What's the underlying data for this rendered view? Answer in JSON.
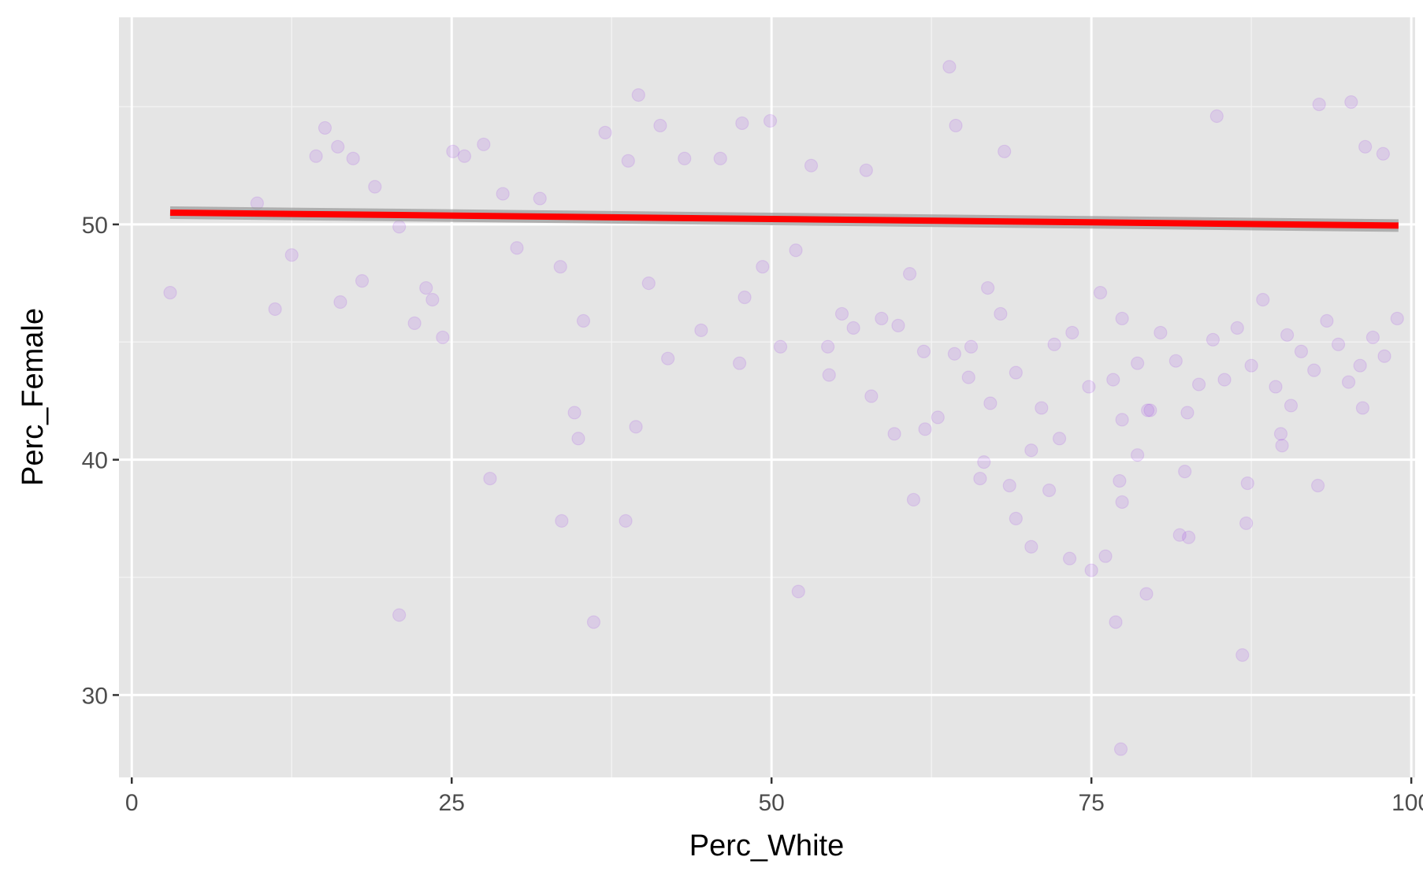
{
  "chart_data": {
    "type": "scatter",
    "title": "",
    "xlabel": "Perc_White",
    "ylabel": "Perc_Female",
    "xlim": [
      -1.0,
      100.3
    ],
    "ylim": [
      26.5,
      58.8
    ],
    "x_ticks": [
      0,
      25,
      50,
      75,
      100
    ],
    "x_tick_labels": [
      "0",
      "25",
      "50",
      "75",
      "100"
    ],
    "y_ticks": [
      30,
      40,
      50
    ],
    "y_tick_labels": [
      "30",
      "40",
      "50"
    ],
    "grid": true,
    "legend": "none",
    "point_color": "#8a1be8",
    "point_opacity": 0.12,
    "trend_line": {
      "method": "linear",
      "x": [
        3,
        99
      ],
      "y": [
        50.5,
        49.95
      ],
      "color": "#ff0000",
      "band_color": "#999999"
    },
    "points": [
      [
        3.0,
        47.1
      ],
      [
        12.5,
        48.7
      ],
      [
        11.2,
        46.4
      ],
      [
        16.3,
        46.7
      ],
      [
        18.0,
        47.6
      ],
      [
        20.9,
        33.4
      ],
      [
        24.3,
        45.2
      ],
      [
        28.0,
        39.2
      ],
      [
        34.6,
        42.0
      ],
      [
        34.9,
        40.9
      ],
      [
        33.6,
        37.4
      ],
      [
        36.1,
        33.1
      ],
      [
        38.6,
        37.4
      ],
      [
        39.4,
        41.4
      ],
      [
        39.6,
        55.5
      ],
      [
        47.5,
        44.1
      ],
      [
        52.1,
        34.4
      ],
      [
        54.5,
        43.6
      ],
      [
        57.8,
        42.7
      ],
      [
        59.6,
        41.1
      ],
      [
        61.1,
        38.3
      ],
      [
        62.0,
        41.3
      ],
      [
        64.3,
        44.5
      ],
      [
        65.4,
        43.5
      ],
      [
        66.3,
        39.2
      ],
      [
        66.6,
        39.9
      ],
      [
        67.1,
        42.4
      ],
      [
        68.2,
        53.1
      ],
      [
        68.6,
        38.9
      ],
      [
        69.1,
        37.5
      ],
      [
        70.3,
        36.3
      ],
      [
        71.7,
        38.7
      ],
      [
        72.5,
        40.9
      ],
      [
        73.3,
        35.8
      ],
      [
        75.0,
        35.3
      ],
      [
        76.1,
        35.9
      ],
      [
        77.4,
        38.2
      ],
      [
        77.2,
        39.1
      ],
      [
        77.4,
        41.7
      ],
      [
        78.6,
        40.2
      ],
      [
        79.3,
        34.3
      ],
      [
        79.6,
        42.1
      ],
      [
        81.9,
        36.8
      ],
      [
        82.6,
        36.7
      ],
      [
        82.3,
        39.5
      ],
      [
        86.8,
        31.7
      ],
      [
        87.1,
        37.3
      ],
      [
        87.2,
        39.0
      ],
      [
        89.8,
        41.1
      ],
      [
        89.9,
        40.6
      ],
      [
        90.6,
        42.3
      ],
      [
        92.7,
        38.9
      ],
      [
        96.2,
        42.2
      ],
      [
        77.3,
        27.7
      ],
      [
        76.9,
        33.1
      ],
      [
        9.8,
        50.9
      ],
      [
        14.4,
        52.9
      ],
      [
        15.1,
        54.1
      ],
      [
        16.1,
        53.3
      ],
      [
        17.3,
        52.8
      ],
      [
        19.0,
        51.6
      ],
      [
        20.9,
        49.9
      ],
      [
        22.1,
        45.8
      ],
      [
        23.0,
        47.3
      ],
      [
        23.5,
        46.8
      ],
      [
        25.1,
        53.1
      ],
      [
        26.0,
        52.9
      ],
      [
        27.5,
        53.4
      ],
      [
        29.0,
        51.3
      ],
      [
        30.1,
        49.0
      ],
      [
        31.9,
        51.1
      ],
      [
        33.5,
        48.2
      ],
      [
        35.3,
        45.9
      ],
      [
        37.0,
        53.9
      ],
      [
        38.8,
        52.7
      ],
      [
        40.4,
        47.5
      ],
      [
        41.9,
        44.3
      ],
      [
        43.2,
        52.8
      ],
      [
        44.5,
        45.5
      ],
      [
        46.0,
        52.8
      ],
      [
        47.9,
        46.9
      ],
      [
        49.3,
        48.2
      ],
      [
        50.7,
        44.8
      ],
      [
        51.9,
        48.9
      ],
      [
        53.1,
        52.5
      ],
      [
        54.4,
        44.8
      ],
      [
        55.5,
        46.2
      ],
      [
        56.4,
        45.6
      ],
      [
        57.4,
        52.3
      ],
      [
        58.6,
        46.0
      ],
      [
        59.9,
        45.7
      ],
      [
        60.8,
        47.9
      ],
      [
        61.9,
        44.6
      ],
      [
        63.0,
        41.8
      ],
      [
        64.4,
        54.2
      ],
      [
        65.6,
        44.8
      ],
      [
        66.9,
        47.3
      ],
      [
        67.9,
        46.2
      ],
      [
        69.1,
        43.7
      ],
      [
        70.3,
        40.4
      ],
      [
        71.1,
        42.2
      ],
      [
        72.1,
        44.9
      ],
      [
        73.5,
        45.4
      ],
      [
        74.8,
        43.1
      ],
      [
        75.7,
        47.1
      ],
      [
        76.7,
        43.4
      ],
      [
        77.4,
        46.0
      ],
      [
        78.6,
        44.1
      ],
      [
        79.4,
        42.1
      ],
      [
        80.4,
        45.4
      ],
      [
        81.6,
        44.2
      ],
      [
        82.5,
        42.0
      ],
      [
        83.4,
        43.2
      ],
      [
        84.5,
        45.1
      ],
      [
        85.4,
        43.4
      ],
      [
        86.4,
        45.6
      ],
      [
        87.5,
        44.0
      ],
      [
        88.4,
        46.8
      ],
      [
        89.4,
        43.1
      ],
      [
        90.3,
        45.3
      ],
      [
        91.4,
        44.6
      ],
      [
        92.4,
        43.8
      ],
      [
        93.4,
        45.9
      ],
      [
        94.3,
        44.9
      ],
      [
        95.1,
        43.3
      ],
      [
        96.0,
        44.0
      ],
      [
        97.0,
        45.2
      ],
      [
        97.9,
        44.4
      ],
      [
        98.9,
        46.0
      ],
      [
        41.3,
        54.2
      ],
      [
        47.7,
        54.3
      ],
      [
        49.9,
        54.4
      ],
      [
        63.9,
        56.7
      ],
      [
        84.8,
        54.6
      ],
      [
        92.8,
        55.1
      ],
      [
        95.3,
        55.2
      ],
      [
        96.4,
        53.3
      ],
      [
        97.8,
        53.0
      ]
    ]
  }
}
